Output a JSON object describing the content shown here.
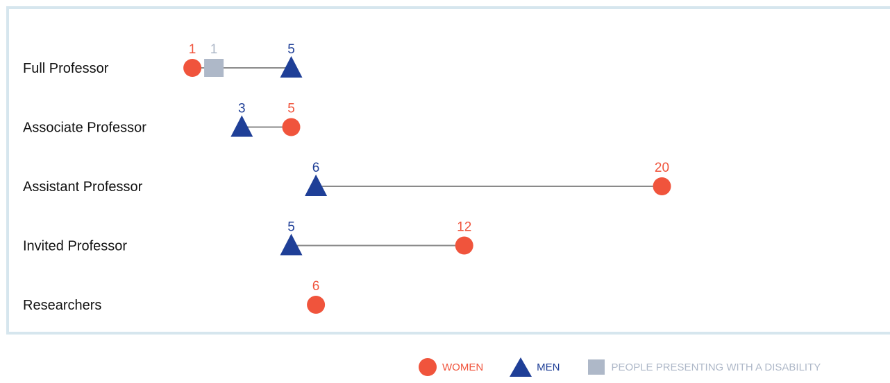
{
  "chart_data": {
    "type": "dot-plot",
    "categories": [
      "Full Professor",
      "Associate Professor",
      "Assistant Professor",
      "Invited Professor",
      "Researchers"
    ],
    "series": [
      {
        "name": "WOMEN",
        "marker": "circle",
        "color": "#f0543c",
        "values": [
          1,
          5,
          20,
          12,
          6
        ]
      },
      {
        "name": "MEN",
        "marker": "triangle",
        "color": "#1f3f97",
        "values": [
          5,
          3,
          6,
          5,
          null
        ]
      },
      {
        "name": "PEOPLE PRESENTING WITH A DISABILITY",
        "marker": "square",
        "color": "#aeb8c8",
        "values": [
          1,
          null,
          null,
          null,
          null
        ]
      }
    ],
    "xlim": [
      0,
      20
    ],
    "grid": false,
    "legend_position": "bottom-right",
    "connector_color": "#8a8a8a"
  }
}
